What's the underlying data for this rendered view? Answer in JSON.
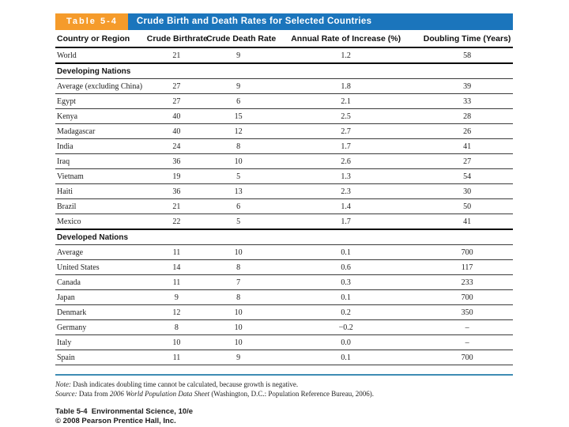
{
  "title_bar": {
    "tab_label": "Table 5-4",
    "title": "Crude Birth and Death Rates for Selected Countries"
  },
  "colors": {
    "tab_orange": "#f59b2b",
    "banner_blue": "#1b75bc",
    "footer_rule_blue": "#3e8cb4"
  },
  "table": {
    "columns": [
      "Country or Region",
      "Crude Birthrate",
      "Crude Death Rate",
      "Annual Rate of Increase (%)",
      "Doubling Time (Years)"
    ],
    "rows": [
      {
        "type": "data",
        "country": "World",
        "values": [
          "21",
          "9",
          "1.2",
          "58"
        ],
        "thick": true
      },
      {
        "type": "section",
        "label": "Developing Nations"
      },
      {
        "type": "data",
        "country": "Average (excluding China)",
        "values": [
          "27",
          "9",
          "1.8",
          "39"
        ]
      },
      {
        "type": "data",
        "country": "Egypt",
        "values": [
          "27",
          "6",
          "2.1",
          "33"
        ]
      },
      {
        "type": "data",
        "country": "Kenya",
        "values": [
          "40",
          "15",
          "2.5",
          "28"
        ]
      },
      {
        "type": "data",
        "country": "Madagascar",
        "values": [
          "40",
          "12",
          "2.7",
          "26"
        ]
      },
      {
        "type": "data",
        "country": "India",
        "values": [
          "24",
          "8",
          "1.7",
          "41"
        ]
      },
      {
        "type": "data",
        "country": "Iraq",
        "values": [
          "36",
          "10",
          "2.6",
          "27"
        ]
      },
      {
        "type": "data",
        "country": "Vietnam",
        "values": [
          "19",
          "5",
          "1.3",
          "54"
        ]
      },
      {
        "type": "data",
        "country": "Haiti",
        "values": [
          "36",
          "13",
          "2.3",
          "30"
        ]
      },
      {
        "type": "data",
        "country": "Brazil",
        "values": [
          "21",
          "6",
          "1.4",
          "50"
        ]
      },
      {
        "type": "data",
        "country": "Mexico",
        "values": [
          "22",
          "5",
          "1.7",
          "41"
        ],
        "thick": true
      },
      {
        "type": "section",
        "label": "Developed Nations"
      },
      {
        "type": "data",
        "country": "Average",
        "values": [
          "11",
          "10",
          "0.1",
          "700"
        ]
      },
      {
        "type": "data",
        "country": "United States",
        "values": [
          "14",
          "8",
          "0.6",
          "117"
        ]
      },
      {
        "type": "data",
        "country": "Canada",
        "values": [
          "11",
          "7",
          "0.3",
          "233"
        ]
      },
      {
        "type": "data",
        "country": "Japan",
        "values": [
          "9",
          "8",
          "0.1",
          "700"
        ]
      },
      {
        "type": "data",
        "country": "Denmark",
        "values": [
          "12",
          "10",
          "0.2",
          "350"
        ]
      },
      {
        "type": "data",
        "country": "Germany",
        "values": [
          "8",
          "10",
          "−0.2",
          "–"
        ]
      },
      {
        "type": "data",
        "country": "Italy",
        "values": [
          "10",
          "10",
          "0.0",
          "–"
        ]
      },
      {
        "type": "data",
        "country": "Spain",
        "values": [
          "11",
          "9",
          "0.1",
          "700"
        ]
      }
    ]
  },
  "footnotes": {
    "note_label": "Note:",
    "note_text": " Dash indicates doubling time cannot be calculated, because growth is negative.",
    "source_label": "Source:",
    "source_prefix": " Data from ",
    "source_title": "2006 World Population Data Sheet",
    "source_suffix": " (Washington, D.C.: Population Reference Bureau, 2006)."
  },
  "credits": {
    "label": "Table 5-4",
    "book": "Environmental Science, 10/e",
    "line2": "© 2008 Pearson Prentice Hall, Inc."
  }
}
